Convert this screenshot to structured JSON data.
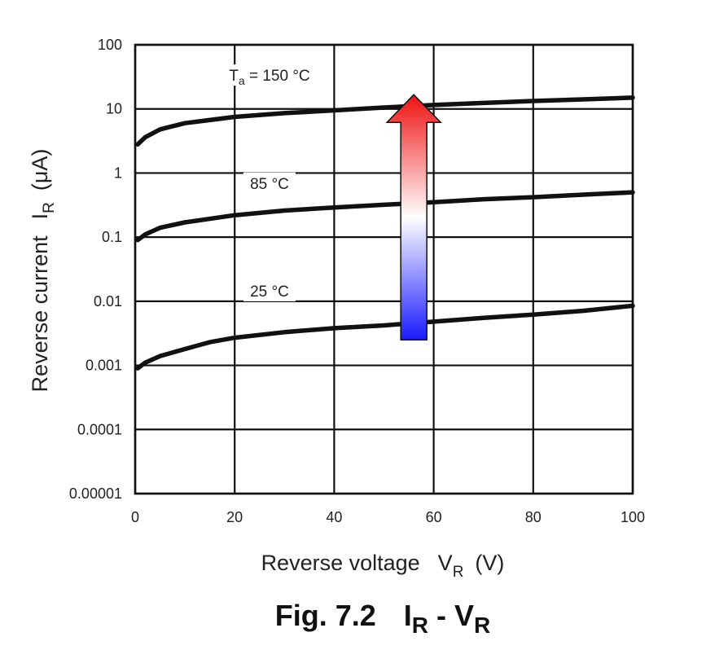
{
  "chart_data": {
    "type": "line",
    "caption": {
      "fig": "Fig. 7.2",
      "i": "I",
      "i_sub": "R",
      "sep": " - ",
      "v": "V",
      "v_sub": "R"
    },
    "xlabel": {
      "text": "Reverse voltage",
      "var": "V",
      "sub": "R",
      "unit": "(V)"
    },
    "ylabel": {
      "text": "Reverse current",
      "var": "I",
      "sub": "R",
      "unit": "(μA)"
    },
    "xlim": [
      0,
      100
    ],
    "ylim": [
      1e-05,
      100
    ],
    "yscale": "log",
    "grid": true,
    "x_ticks": [
      0,
      20,
      40,
      60,
      80,
      100
    ],
    "x_tick_labels": [
      "0",
      "20",
      "40",
      "60",
      "80",
      "100"
    ],
    "y_ticks": [
      1e-05,
      0.0001,
      0.001,
      0.01,
      0.1,
      1,
      10,
      100
    ],
    "y_tick_labels": [
      "0.00001",
      "0.0001",
      "0.001",
      "0.01",
      "0.1",
      "1",
      "10",
      "100"
    ],
    "series": [
      {
        "name": "T_a = 150 °C",
        "label_parts": {
          "pre": "T",
          "sub": "a",
          "post": " = 150 °C"
        },
        "x": [
          0.5,
          2,
          5,
          10,
          20,
          30,
          40,
          50,
          60,
          70,
          80,
          90,
          100
        ],
        "y": [
          2.8,
          3.6,
          4.8,
          6.0,
          7.5,
          8.6,
          9.5,
          10.5,
          11.5,
          12.4,
          13.3,
          14.1,
          15.0
        ]
      },
      {
        "name": "85 °C",
        "label_parts": {
          "pre": "85 °C",
          "sub": "",
          "post": ""
        },
        "x": [
          0.5,
          2,
          5,
          10,
          20,
          30,
          40,
          50,
          60,
          70,
          80,
          90,
          100
        ],
        "y": [
          0.09,
          0.11,
          0.14,
          0.17,
          0.22,
          0.26,
          0.29,
          0.32,
          0.35,
          0.39,
          0.42,
          0.46,
          0.5
        ]
      },
      {
        "name": "25 °C",
        "label_parts": {
          "pre": "25 °C",
          "sub": "",
          "post": ""
        },
        "x": [
          0.5,
          2,
          5,
          10,
          15,
          20,
          30,
          40,
          50,
          60,
          70,
          80,
          90,
          100
        ],
        "y": [
          0.0009,
          0.0011,
          0.0014,
          0.0018,
          0.0023,
          0.0027,
          0.0033,
          0.0038,
          0.0042,
          0.0048,
          0.0055,
          0.0062,
          0.0071,
          0.0085
        ]
      }
    ],
    "arrow": {
      "x": 56,
      "y_from": 0.0025,
      "y_to": 14,
      "colors": {
        "top": "#ee1111",
        "middle": "#ffffff",
        "bottom": "#1a1aff",
        "outline": "#111111"
      }
    }
  }
}
